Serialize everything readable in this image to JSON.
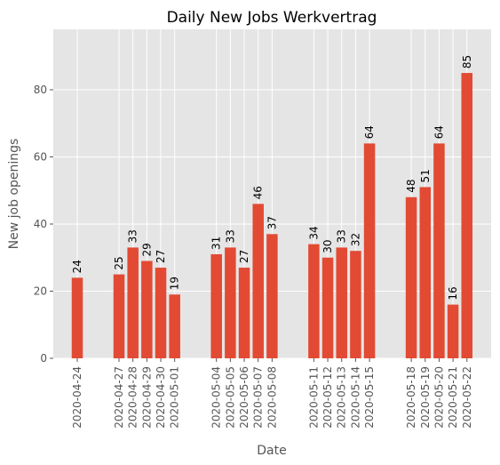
{
  "chart_data": {
    "type": "bar",
    "title": "Daily New Jobs Werkvertrag",
    "xlabel": "Date",
    "ylabel": "New job openings",
    "ylim": [
      0,
      98
    ],
    "yticks": [
      0,
      20,
      40,
      60,
      80
    ],
    "grid": true,
    "bar_color": "#e24a33",
    "background_color": "#e5e5e5",
    "grid_color": "#ffffff",
    "data_labels": true,
    "x": [
      "2020-04-24",
      "2020-04-27",
      "2020-04-28",
      "2020-04-29",
      "2020-04-30",
      "2020-05-01",
      "2020-05-04",
      "2020-05-05",
      "2020-05-06",
      "2020-05-07",
      "2020-05-08",
      "2020-05-11",
      "2020-05-12",
      "2020-05-13",
      "2020-05-14",
      "2020-05-15",
      "2020-05-18",
      "2020-05-19",
      "2020-05-20",
      "2020-05-21",
      "2020-05-22"
    ],
    "values": [
      24,
      25,
      33,
      29,
      27,
      19,
      31,
      33,
      27,
      46,
      37,
      34,
      30,
      33,
      32,
      64,
      48,
      51,
      64,
      16,
      85
    ]
  }
}
